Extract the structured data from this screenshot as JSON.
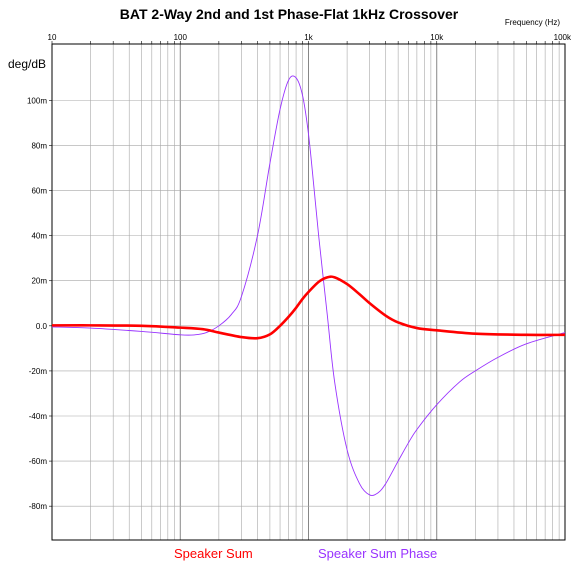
{
  "title": "BAT 2-Way 2nd and 1st Phase-Flat 1kHz Crossover",
  "x_unit_label": "Frequency (Hz)",
  "y_unit_label": "deg/dB",
  "legend": [
    {
      "label": "Speaker Sum",
      "color": "#ff0000"
    },
    {
      "label": "Speaker Sum Phase",
      "color": "#9933ff"
    }
  ],
  "chart_data": {
    "type": "line",
    "title": "BAT 2-Way 2nd and 1st Phase-Flat 1kHz Crossover",
    "xlabel": "Frequency (Hz)",
    "ylabel": "deg/dB",
    "x_scale": "log",
    "xlim": [
      10,
      100000
    ],
    "ylim": [
      -95,
      125
    ],
    "x_ticks": [
      {
        "value": 10,
        "label": "10"
      },
      {
        "value": 100,
        "label": "100"
      },
      {
        "value": 1000,
        "label": "1k"
      },
      {
        "value": 10000,
        "label": "10k"
      },
      {
        "value": 100000,
        "label": "100k"
      }
    ],
    "y_ticks": [
      {
        "value": 100,
        "label": "100m"
      },
      {
        "value": 80,
        "label": "80m"
      },
      {
        "value": 60,
        "label": "60m"
      },
      {
        "value": 40,
        "label": "40m"
      },
      {
        "value": 20,
        "label": "20m"
      },
      {
        "value": 0,
        "label": "0.0"
      },
      {
        "value": -20,
        "label": "-20m"
      },
      {
        "value": -40,
        "label": "-40m"
      },
      {
        "value": -60,
        "label": "-60m"
      },
      {
        "value": -80,
        "label": "-80m"
      }
    ],
    "grid": true,
    "series": [
      {
        "name": "Speaker Sum",
        "color": "#ff0000",
        "x": [
          10,
          20,
          50,
          100,
          150,
          200,
          300,
          400,
          500,
          600,
          700,
          800,
          900,
          1000,
          1200,
          1400,
          1600,
          2000,
          2500,
          3000,
          4000,
          5000,
          7000,
          10000,
          20000,
          50000,
          100000
        ],
        "y": [
          0.2,
          0.2,
          0,
          -0.8,
          -1.5,
          -3,
          -5,
          -5.5,
          -3.8,
          0,
          4,
          8,
          12,
          15,
          19.5,
          21.5,
          21.5,
          18.5,
          14,
          10,
          4.5,
          1.5,
          -1,
          -2,
          -3.5,
          -4,
          -4
        ]
      },
      {
        "name": "Speaker Sum Phase",
        "color": "#9933ff",
        "x": [
          10,
          20,
          50,
          100,
          130,
          160,
          200,
          250,
          300,
          400,
          500,
          600,
          700,
          800,
          900,
          1000,
          1100,
          1200,
          1400,
          1600,
          2000,
          2500,
          3000,
          3500,
          4000,
          5000,
          6000,
          7000,
          10000,
          15000,
          20000,
          30000,
          50000,
          100000
        ],
        "y": [
          -0.5,
          -1,
          -2.5,
          -4,
          -4,
          -3,
          0,
          5,
          13,
          40,
          72,
          96,
          109,
          110,
          102,
          85,
          62,
          40,
          5,
          -25,
          -55,
          -70,
          -75,
          -74,
          -70,
          -60,
          -52,
          -46,
          -35,
          -25,
          -20,
          -14,
          -8,
          -3
        ]
      }
    ]
  }
}
